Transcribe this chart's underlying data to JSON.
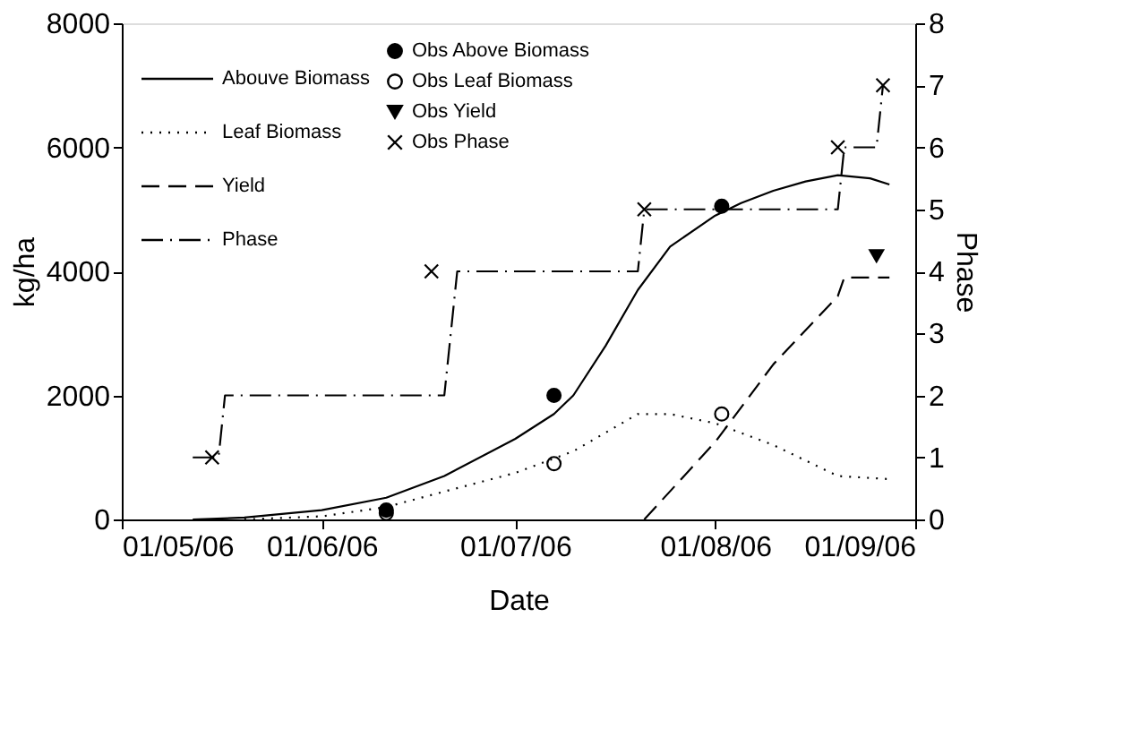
{
  "chart_data": {
    "type": "line",
    "xlabel": "Date",
    "ylabel": "kg/ha",
    "y2label": "Phase",
    "xlim": [
      "2006-05-01",
      "2006-09-01"
    ],
    "xticks": [
      {
        "value": "2006-05-01",
        "label": "01/05/06"
      },
      {
        "value": "2006-06-01",
        "label": "01/06/06"
      },
      {
        "value": "2006-07-01",
        "label": "01/07/06"
      },
      {
        "value": "2006-08-01",
        "label": "01/08/06"
      },
      {
        "value": "2006-09-01",
        "label": "01/09/06"
      }
    ],
    "ylim": [
      0,
      8000
    ],
    "yticks": [
      0,
      2000,
      4000,
      6000,
      8000
    ],
    "y2lim": [
      0,
      8
    ],
    "y2ticks": [
      0,
      1,
      2,
      3,
      4,
      5,
      6,
      7,
      8
    ],
    "grid": false,
    "legend": "top left",
    "series": [
      {
        "name": "Abouve Biomass",
        "type": "line",
        "color": "#000000",
        "line_style": "solid",
        "marker": "none",
        "x": [
          "2006-05-12",
          "2006-05-20",
          "2006-06-01",
          "2006-06-11",
          "2006-06-20",
          "2006-07-01",
          "2006-07-07",
          "2006-07-10",
          "2006-07-15",
          "2006-07-20",
          "2006-07-25",
          "2006-08-01",
          "2006-08-05",
          "2006-08-10",
          "2006-08-15",
          "2006-08-20",
          "2006-08-25",
          "2006-08-28"
        ],
        "values": [
          0,
          30,
          150,
          350,
          700,
          1300,
          1700,
          2000,
          2800,
          3700,
          4400,
          4900,
          5100,
          5300,
          5450,
          5550,
          5500,
          5400
        ]
      },
      {
        "name": "Leaf Biomass",
        "type": "line",
        "color": "#000000",
        "line_style": "dotted",
        "marker": "none",
        "x": [
          "2006-05-20",
          "2006-06-01",
          "2006-06-11",
          "2006-06-20",
          "2006-07-01",
          "2006-07-10",
          "2006-07-20",
          "2006-07-25",
          "2006-08-01",
          "2006-08-10",
          "2006-08-20",
          "2006-08-28"
        ],
        "values": [
          0,
          50,
          200,
          450,
          750,
          1100,
          1700,
          1700,
          1550,
          1200,
          700,
          650
        ]
      },
      {
        "name": "Yield",
        "type": "line",
        "color": "#000000",
        "line_style": "dashed",
        "marker": "none",
        "x": [
          "2006-07-21",
          "2006-08-01",
          "2006-08-10",
          "2006-08-20",
          "2006-08-21",
          "2006-08-28"
        ],
        "values": [
          0,
          1250,
          2500,
          3600,
          3900,
          3900
        ]
      },
      {
        "name": "Obs Above Biomass",
        "type": "scatter",
        "color": "#000000",
        "marker": "circle",
        "x": [
          "2006-06-11",
          "2006-07-07",
          "2006-08-02"
        ],
        "values": [
          150,
          2000,
          5050
        ]
      },
      {
        "name": "Obs Leaf Biomass",
        "type": "scatter",
        "color": "#000000",
        "marker": "circle_open",
        "x": [
          "2006-06-11",
          "2006-07-07",
          "2006-08-02"
        ],
        "values": [
          100,
          900,
          1700
        ]
      },
      {
        "name": "Obs Yield",
        "type": "scatter",
        "color": "#000000",
        "marker": "triangle",
        "x": [
          "2006-08-26"
        ],
        "values": [
          4250
        ]
      },
      {
        "name": "Phase",
        "type": "line",
        "axis": "y2",
        "color": "#000000",
        "line_style": "dashdot",
        "marker": "none",
        "x": [
          "2006-05-12",
          "2006-05-16",
          "2006-05-17",
          "2006-06-20",
          "2006-06-22",
          "2006-07-20",
          "2006-07-21",
          "2006-08-20",
          "2006-08-21",
          "2006-08-26",
          "2006-08-27"
        ],
        "values": [
          1,
          1,
          2,
          2,
          4,
          4,
          5,
          5,
          6,
          6,
          7
        ]
      },
      {
        "name": "Obs Phase",
        "type": "scatter",
        "axis": "y2",
        "color": "#000000",
        "marker": "cross",
        "x": [
          "2006-05-15",
          "2006-06-18",
          "2006-07-21",
          "2006-08-20",
          "2006-08-27"
        ],
        "values": [
          1,
          4,
          5,
          6,
          7
        ]
      }
    ]
  }
}
